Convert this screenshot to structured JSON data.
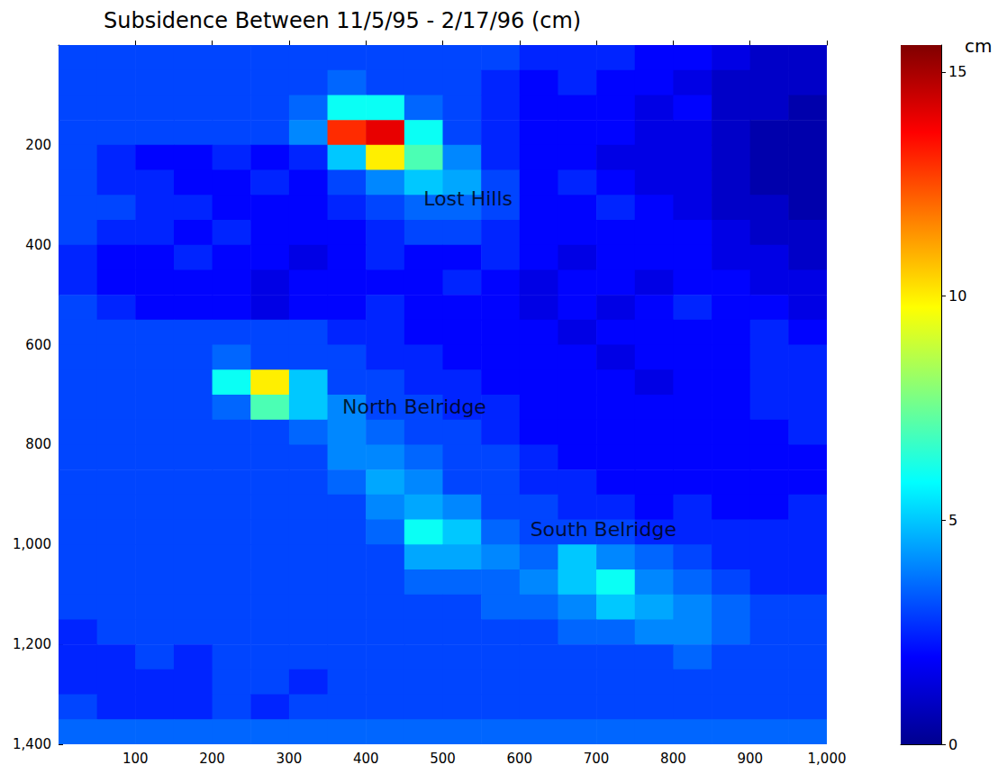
{
  "chart_data": {
    "type": "heatmap",
    "title": "Subsidence Between 11/5/95 - 2/17/96 (cm)",
    "xlim": [
      0,
      1000
    ],
    "xticks": [
      100,
      200,
      300,
      400,
      500,
      600,
      700,
      800,
      900,
      1000
    ],
    "ylim": [
      0,
      1400
    ],
    "yticks": [
      200,
      400,
      600,
      800,
      1000,
      1200,
      1400
    ],
    "grid": false,
    "heatmap": {
      "x": [
        25,
        75,
        125,
        175,
        225,
        275,
        325,
        375,
        425,
        475,
        525,
        575,
        625,
        675,
        725,
        775,
        825,
        875,
        925,
        975
      ],
      "y": [
        25,
        75,
        125,
        175,
        225,
        275,
        325,
        375,
        425,
        475,
        525,
        575,
        625,
        675,
        725,
        775,
        825,
        875,
        925,
        975,
        1025,
        1075,
        1125,
        1175,
        1225,
        1275,
        1325,
        1375
      ],
      "values": [
        [
          3,
          3,
          3,
          3,
          3,
          3,
          3,
          3,
          3,
          3,
          3,
          3,
          2.5,
          2.5,
          2.5,
          2,
          2,
          1.5,
          1,
          1
        ],
        [
          3,
          3,
          3,
          3,
          3,
          3,
          3,
          3.5,
          3,
          3,
          3,
          2.5,
          2,
          2.5,
          2,
          2,
          1.5,
          1,
          1,
          1
        ],
        [
          3,
          3,
          3,
          3,
          3,
          3,
          3.5,
          6,
          6,
          3.5,
          3,
          2.5,
          2,
          2,
          2,
          1.5,
          2,
          1,
          1,
          0.5
        ],
        [
          3,
          3,
          3,
          3,
          3,
          3,
          4,
          13,
          14,
          6,
          3,
          2.5,
          2,
          2,
          2,
          1.5,
          1.5,
          1,
          0.5,
          0.5
        ],
        [
          3,
          2.5,
          2,
          2,
          2.5,
          2,
          2.5,
          5,
          10,
          7,
          4,
          2.5,
          2,
          2,
          1.5,
          1.5,
          1.5,
          1,
          0.5,
          0.5
        ],
        [
          3,
          2.5,
          2.5,
          2,
          2,
          2.5,
          2,
          3,
          4,
          5,
          4.5,
          3,
          2,
          2.5,
          2,
          1.5,
          1.5,
          1,
          0.5,
          0.5
        ],
        [
          3,
          3,
          2.5,
          2.5,
          2,
          2,
          2,
          2.5,
          3,
          3.5,
          3.5,
          3,
          2,
          2,
          2.5,
          2,
          1.5,
          1,
          1,
          0.5
        ],
        [
          3,
          2.5,
          2.5,
          2,
          2.5,
          2,
          2,
          2,
          2.5,
          3,
          3,
          2.5,
          2,
          2,
          2,
          2,
          2,
          1.5,
          1,
          1
        ],
        [
          2.5,
          2,
          2,
          2.5,
          2,
          2,
          1.5,
          2,
          2.5,
          2,
          2,
          2.5,
          2,
          1.5,
          2,
          2,
          2,
          1.5,
          1.5,
          1
        ],
        [
          2.5,
          2,
          2,
          2,
          2,
          1.5,
          2,
          2,
          2,
          2,
          2.5,
          2,
          1.5,
          2,
          2,
          1.5,
          2,
          2,
          1.5,
          1.5
        ],
        [
          3,
          2.5,
          2,
          2,
          2,
          1.5,
          2,
          2,
          2.5,
          2,
          2,
          2,
          1.5,
          2,
          1.5,
          2,
          2.5,
          2,
          2,
          1.5
        ],
        [
          3,
          3,
          3,
          3,
          3,
          3,
          3,
          2.5,
          2.5,
          2,
          2,
          2,
          2,
          1.5,
          2,
          2,
          2,
          2,
          2.5,
          2
        ],
        [
          3,
          3,
          3,
          3,
          3.5,
          3,
          3,
          3,
          2.5,
          2.5,
          2,
          2,
          2,
          2,
          1.5,
          2,
          2,
          2,
          2.5,
          2.5
        ],
        [
          3,
          3,
          3,
          3,
          6,
          10,
          5,
          3,
          3,
          2.5,
          2.5,
          2,
          2,
          2,
          2,
          1.5,
          2,
          2,
          2.5,
          2.5
        ],
        [
          3,
          3,
          3,
          3,
          3.5,
          7,
          5,
          4,
          3,
          3,
          2.5,
          2.5,
          2,
          2,
          2,
          2,
          2,
          2,
          2.5,
          2.5
        ],
        [
          3,
          3,
          3,
          3,
          3,
          3,
          3.5,
          4,
          3.5,
          3,
          3,
          2.5,
          2,
          2,
          2,
          2,
          2,
          2,
          2,
          2.5
        ],
        [
          3,
          3,
          3,
          3,
          3,
          3,
          3,
          4,
          4,
          3.5,
          3,
          3,
          2.5,
          2,
          2,
          2,
          2,
          2,
          2,
          2
        ],
        [
          3,
          3,
          3,
          3,
          3,
          3,
          3,
          3.5,
          4.5,
          4,
          3,
          3,
          2.5,
          2.5,
          2,
          2,
          2,
          2,
          2,
          2
        ],
        [
          3,
          3,
          3,
          3,
          3,
          3,
          3,
          3,
          4,
          4.5,
          4,
          3,
          3,
          2.5,
          2.5,
          2,
          2.5,
          2,
          2,
          2.5
        ],
        [
          3,
          3,
          3,
          3,
          3,
          3,
          3,
          3,
          3.5,
          6,
          5,
          3.5,
          3,
          3,
          3,
          2.5,
          2.5,
          2.5,
          2.5,
          2.5
        ],
        [
          3,
          3,
          3,
          3,
          3,
          3,
          3,
          3,
          3,
          4.5,
          4.5,
          4,
          3.5,
          5,
          4,
          3.5,
          3,
          2.5,
          2.5,
          2.5
        ],
        [
          3,
          3,
          3,
          3,
          3,
          3,
          3,
          3,
          3,
          3.5,
          3.5,
          3.5,
          4,
          5,
          6,
          4,
          3.5,
          3,
          2.5,
          2.5
        ],
        [
          3,
          3,
          3,
          3,
          3,
          3,
          3,
          3,
          3,
          3,
          3,
          3.5,
          3.5,
          4,
          5,
          4.5,
          4,
          3.5,
          3,
          3
        ],
        [
          2.5,
          3,
          3,
          3,
          3,
          3,
          3,
          3,
          3,
          3,
          3,
          3,
          3,
          3.5,
          3.5,
          4,
          4,
          3.5,
          3,
          3
        ],
        [
          2.5,
          2.5,
          3,
          2.5,
          3,
          3,
          3,
          3,
          3,
          3,
          3,
          3,
          3,
          3,
          3,
          3,
          3.5,
          3,
          3,
          3
        ],
        [
          2.5,
          2.5,
          2.5,
          2.5,
          3,
          3,
          2.5,
          3,
          3,
          3,
          3,
          3,
          3,
          3,
          3,
          3,
          3,
          3,
          3,
          3
        ],
        [
          3,
          2.5,
          2.5,
          2.5,
          3,
          2.5,
          3,
          3,
          3,
          3,
          3,
          3,
          3,
          3,
          3,
          3,
          3,
          3,
          3,
          3
        ],
        [
          3.5,
          3.5,
          3.5,
          3.5,
          3.5,
          3.5,
          3.5,
          3.5,
          3.5,
          3.5,
          3.5,
          3.5,
          3.5,
          3.5,
          3.5,
          3.5,
          3.5,
          3.5,
          3.5,
          3.5
        ]
      ]
    },
    "colorbar": {
      "range": [
        0,
        15.6
      ],
      "ticks": [
        0,
        5,
        10,
        15
      ],
      "label": "cm"
    },
    "annotations": [
      {
        "text": "Lost Hills",
        "x": 533,
        "y": 307
      },
      {
        "text": "North Belridge",
        "x": 463,
        "y": 725
      },
      {
        "text": "South Belridge",
        "x": 709,
        "y": 969
      }
    ]
  }
}
